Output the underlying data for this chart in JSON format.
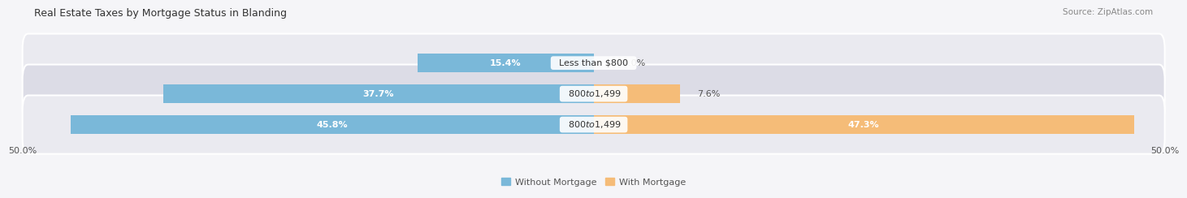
{
  "title": "Real Estate Taxes by Mortgage Status in Blanding",
  "source": "Source: ZipAtlas.com",
  "rows": [
    {
      "label": "Less than $800",
      "without_mortgage": 15.4,
      "with_mortgage": 0.0
    },
    {
      "label": "$800 to $1,499",
      "without_mortgage": 37.7,
      "with_mortgage": 7.6
    },
    {
      "label": "$800 to $1,499",
      "without_mortgage": 45.8,
      "with_mortgage": 47.3
    }
  ],
  "x_min": -50.0,
  "x_max": 50.0,
  "x_tick_labels": [
    "50.0%",
    "50.0%"
  ],
  "color_without_mortgage": "#7ab8d9",
  "color_with_mortgage": "#f5bc78",
  "bar_height": 0.62,
  "row_bg_colors": [
    "#eaeaf0",
    "#dcdce6",
    "#eaeaf0"
  ],
  "fig_bg_color": "#f5f5f8",
  "title_fontsize": 9,
  "source_fontsize": 7.5,
  "label_fontsize": 8,
  "pct_fontsize": 8,
  "legend_fontsize": 8
}
